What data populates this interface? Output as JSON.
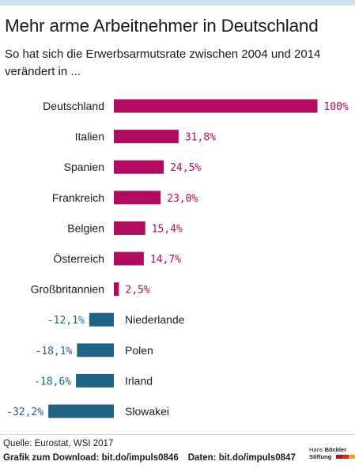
{
  "colors": {
    "positive": "#b00b5e",
    "negative": "#1f6487",
    "top_rule": "#cfe3ef",
    "logo_red": "#d42b1e",
    "logo_orange": "#f0a020",
    "logo_dark": "#9a1b20"
  },
  "header": {
    "title": "Mehr arme Arbeitnehmer in Deutschland",
    "subtitle": "So hat sich die Erwerbsarmutsrate zwischen 2004 und 2014 verändert in ..."
  },
  "chart_data": {
    "type": "bar",
    "orientation": "horizontal",
    "title": "",
    "xlabel": "",
    "ylabel": "",
    "categories": [
      "Deutschland",
      "Italien",
      "Spanien",
      "Frankreich",
      "Belgien",
      "Österreich",
      "Großbritannien",
      "Niederlande",
      "Polen",
      "Irland",
      "Slowakei"
    ],
    "values": [
      100,
      31.8,
      24.5,
      23.0,
      15.4,
      14.7,
      2.5,
      -12.1,
      -18.1,
      -18.6,
      -32.2
    ],
    "value_labels": [
      "100%",
      "31,8%",
      "24,5%",
      "23,0%",
      "15,4%",
      "14,7%",
      "2,5%",
      "-12,1%",
      "-18,1%",
      "-18,6%",
      "-32,2%"
    ],
    "unit": "%",
    "grid": false,
    "legend": "none"
  },
  "footer": {
    "source": "Quelle: Eurostat, WSI 2017",
    "download": "Grafik zum Download: bit.do/impuls0846",
    "data_link": "Daten: bit.do/impuls0847",
    "logo_line1_a": "Hans ",
    "logo_line1_b": "Böckler",
    "logo_line2": "Stiftung"
  }
}
